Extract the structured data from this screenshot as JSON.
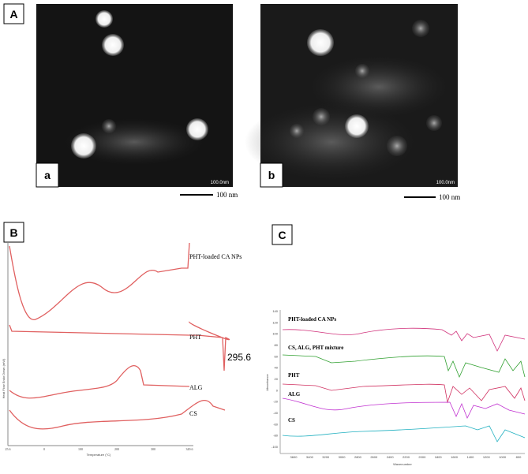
{
  "panel_a": {
    "label": "A",
    "images": [
      {
        "label": "a",
        "scale_text": "100.0nm",
        "scale_bar": "100 nm"
      },
      {
        "label": "b",
        "scale_text": "100.0nm",
        "scale_bar": "100 nm"
      }
    ]
  },
  "panel_b": {
    "label": "B",
    "curves": [
      "PHT-loaded CA NPs",
      "PHT",
      "ALG",
      "CS"
    ],
    "annotation": "295.6",
    "y_title": "Heat Flow Endo Down (mW)",
    "x_title": "Temperature (°C)",
    "xticks": [
      "25.6",
      "0",
      "100",
      "200",
      "300",
      "349.6"
    ]
  },
  "panel_c": {
    "label": "C",
    "curves": [
      "PHT-loaded CA NPs",
      "CS, ALG, PHT mixture",
      "PHT",
      "ALG",
      "CS"
    ],
    "y_title": "Absorbance",
    "x_title": "Wavenumber",
    "yticks": [
      "140",
      "120",
      "100",
      "80",
      "60",
      "40",
      "20",
      "0",
      "-20",
      "-40",
      "-60",
      "-80",
      "-100"
    ],
    "xticks": [
      "3600",
      "3400",
      "3200",
      "3000",
      "2800",
      "2600",
      "2400",
      "2200",
      "2000",
      "1800",
      "1600",
      "1400",
      "1200",
      "1000",
      "800"
    ]
  }
}
